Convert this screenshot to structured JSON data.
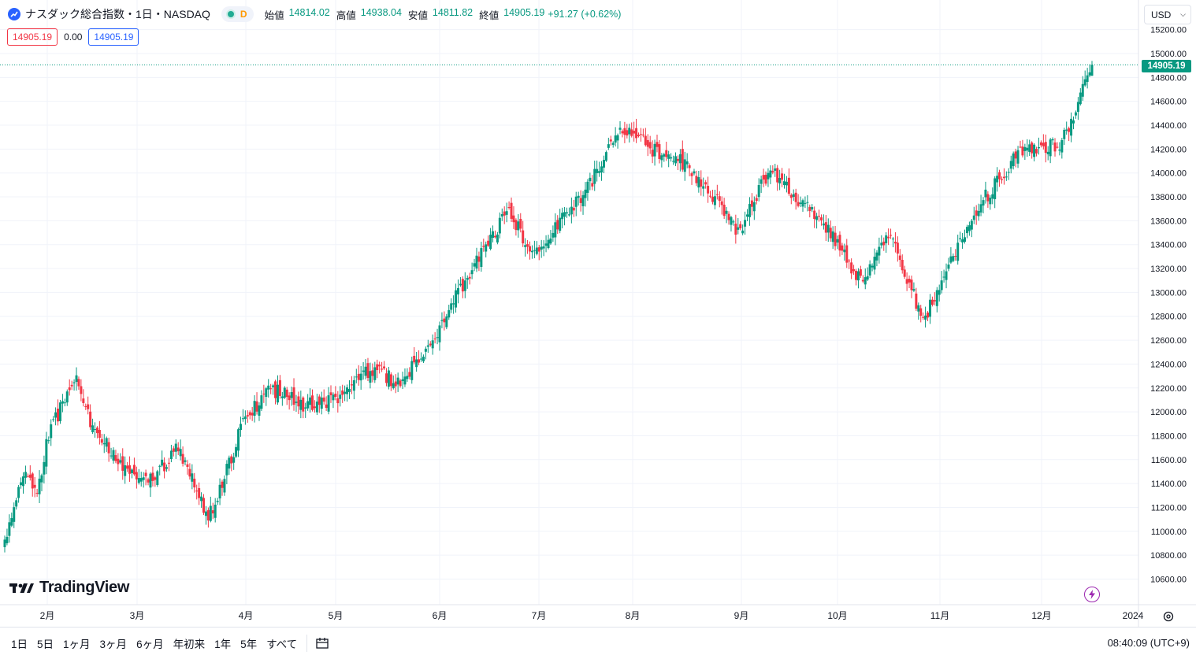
{
  "header": {
    "title": "ナスダック総合指数・1日・NASDAQ",
    "delay_label": "D",
    "ohlc": [
      {
        "label": "始値",
        "value": "14814.02"
      },
      {
        "label": "高値",
        "value": "14938.04"
      },
      {
        "label": "安値",
        "value": "14811.82"
      },
      {
        "label": "終値",
        "value": "14905.19"
      }
    ],
    "change": "+91.27 (+0.62%)"
  },
  "trade": {
    "bid": "14905.19",
    "spread": "0.00",
    "ask": "14905.19"
  },
  "currency": {
    "label": "USD"
  },
  "price_axis": {
    "labels": [
      "15200.00",
      "15000.00",
      "14800.00",
      "14600.00",
      "14400.00",
      "14200.00",
      "14000.00",
      "13800.00",
      "13600.00",
      "13400.00",
      "13200.00",
      "13000.00",
      "12800.00",
      "12600.00",
      "12400.00",
      "12200.00",
      "12000.00",
      "11800.00",
      "11600.00",
      "11400.00",
      "11200.00",
      "11000.00",
      "10800.00",
      "10600.00"
    ],
    "last_price": "14905.19"
  },
  "time_axis": {
    "labels": [
      "2月",
      "3月",
      "4月",
      "5月",
      "6月",
      "7月",
      "8月",
      "9月",
      "10月",
      "11月",
      "12月",
      "2024"
    ]
  },
  "branding": {
    "logo_text": "TradingView"
  },
  "colors": {
    "up": "#089981",
    "down": "#f23645",
    "grid": "#f0f3fa",
    "accent": "#2962ff"
  },
  "timeframes": [
    "1日",
    "5日",
    "1ヶ月",
    "3ヶ月",
    "6ヶ月",
    "年初来",
    "1年",
    "5年",
    "すべて"
  ],
  "clock": "08:40:09 (UTC+9)",
  "chart_data": {
    "type": "candlestick",
    "title": "ナスダック総合指数・1日・NASDAQ",
    "ylim": [
      10500,
      15300
    ],
    "last": 14905.19,
    "x_months": [
      "2月",
      "3月",
      "4月",
      "5月",
      "6月",
      "7月",
      "8月",
      "9月",
      "10月",
      "11月",
      "12月",
      "2024"
    ],
    "anchors": [
      [
        0,
        10900
      ],
      [
        8,
        11500
      ],
      [
        14,
        11350
      ],
      [
        19,
        11800
      ],
      [
        30,
        12300
      ],
      [
        38,
        11850
      ],
      [
        52,
        11550
      ],
      [
        62,
        11400
      ],
      [
        75,
        11700
      ],
      [
        88,
        11100
      ],
      [
        104,
        11950
      ],
      [
        115,
        12200
      ],
      [
        130,
        12050
      ],
      [
        142,
        12100
      ],
      [
        158,
        12350
      ],
      [
        170,
        12250
      ],
      [
        184,
        12550
      ],
      [
        199,
        13100
      ],
      [
        218,
        13700
      ],
      [
        228,
        13300
      ],
      [
        242,
        13650
      ],
      [
        250,
        13800
      ],
      [
        266,
        14400
      ],
      [
        280,
        14200
      ],
      [
        292,
        14100
      ],
      [
        307,
        13800
      ],
      [
        317,
        13500
      ],
      [
        331,
        14050
      ],
      [
        342,
        13800
      ],
      [
        357,
        13500
      ],
      [
        370,
        13100
      ],
      [
        383,
        13500
      ],
      [
        397,
        12750
      ],
      [
        412,
        13400
      ],
      [
        424,
        13800
      ],
      [
        438,
        14150
      ],
      [
        457,
        14250
      ],
      [
        470,
        14900
      ]
    ],
    "series_note": "daily OHLC candles, values approximated from the plotted chart"
  }
}
